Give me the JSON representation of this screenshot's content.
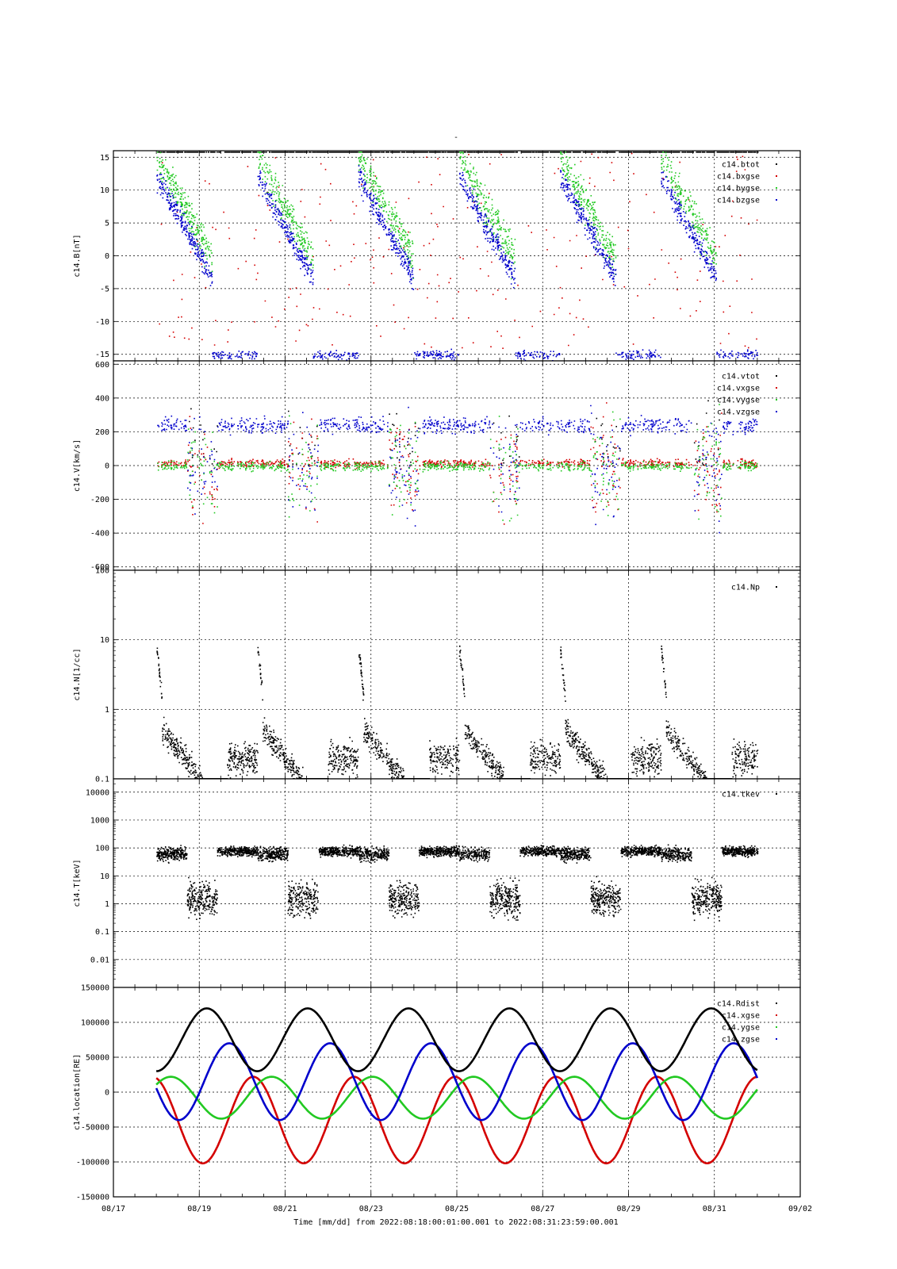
{
  "figure": {
    "title": "-",
    "time_axis_label": "Time [mm/dd]  from 2022:08:18:00:01:00.001  to  2022:08:31:23:59:00.001",
    "x_ticks": [
      "08/17",
      "08/19",
      "08/21",
      "08/23",
      "08/25",
      "08/27",
      "08/29",
      "08/31",
      "09/02"
    ],
    "x_range_days": [
      0,
      16
    ],
    "data_range_days": [
      1.0,
      15.0
    ]
  },
  "chart_data": [
    {
      "type": "scatter",
      "ylabel": "c14.B[nT]",
      "scale": "linear",
      "ylim": [
        -16,
        16
      ],
      "yticks": [
        15,
        10,
        5,
        0,
        -5,
        -10,
        -15
      ],
      "ytick_labels": [
        "15",
        "10",
        "5",
        "0",
        "-5",
        "-10",
        "-15"
      ],
      "grid": true,
      "legend_position": "top-right",
      "series": [
        {
          "name": "c14.btot",
          "color": "#000000"
        },
        {
          "name": "c14.bxgse",
          "color": "#d40000"
        },
        {
          "name": "c14.bygse",
          "color": "#22c922"
        },
        {
          "name": "c14.bzgse",
          "color": "#0000cc"
        }
      ]
    },
    {
      "type": "scatter",
      "ylabel": "c14.V[km/s]",
      "scale": "linear",
      "ylim": [
        -620,
        620
      ],
      "yticks": [
        600,
        400,
        200,
        0,
        -200,
        -400,
        -600
      ],
      "ytick_labels": [
        "600",
        "400",
        "200",
        "0",
        "-200",
        "-400",
        "-600"
      ],
      "grid": true,
      "legend_position": "top-right",
      "series": [
        {
          "name": "c14.vtot",
          "color": "#000000"
        },
        {
          "name": "c14.vxgse",
          "color": "#d40000"
        },
        {
          "name": "c14.vygse",
          "color": "#22c922"
        },
        {
          "name": "c14.vzgse",
          "color": "#0000cc"
        }
      ]
    },
    {
      "type": "scatter",
      "ylabel": "c14.N[1/cc]",
      "scale": "log",
      "ylim": [
        0.1,
        100
      ],
      "yticks": [
        100,
        10,
        1,
        0.1
      ],
      "ytick_labels": [
        "100",
        "10",
        "1",
        "0.1"
      ],
      "grid": true,
      "legend_position": "top-right",
      "series": [
        {
          "name": "c14.Np",
          "color": "#000000"
        }
      ]
    },
    {
      "type": "scatter",
      "ylabel": "c14.T[keV]",
      "scale": "log",
      "ylim": [
        0.001,
        30000
      ],
      "yticks": [
        10000,
        1000,
        100,
        10,
        1,
        0.1,
        0.01
      ],
      "ytick_labels": [
        "10000",
        "1000",
        "100",
        "10",
        "1",
        "0.1",
        "0.01"
      ],
      "bottom_tick_label": "150000",
      "grid": true,
      "legend_position": "top-right",
      "series": [
        {
          "name": "c14.tkev",
          "color": "#000000"
        }
      ]
    },
    {
      "type": "line",
      "ylabel": "c14.location[RE]",
      "scale": "linear",
      "ylim": [
        -150000,
        150000
      ],
      "yticks": [
        100000,
        50000,
        0,
        -50000,
        -100000,
        -150000
      ],
      "ytick_labels": [
        "100000",
        "50000",
        "0",
        "-50000",
        "-100000",
        "-150000"
      ],
      "grid": true,
      "legend_position": "top-right",
      "orbit_period_days": 2.35,
      "series": [
        {
          "name": "c14.Rdist",
          "color": "#000000"
        },
        {
          "name": "c14.xgse",
          "color": "#d40000"
        },
        {
          "name": "c14.ygse",
          "color": "#22c922"
        },
        {
          "name": "c14.zgse",
          "color": "#0000cc"
        }
      ]
    }
  ]
}
